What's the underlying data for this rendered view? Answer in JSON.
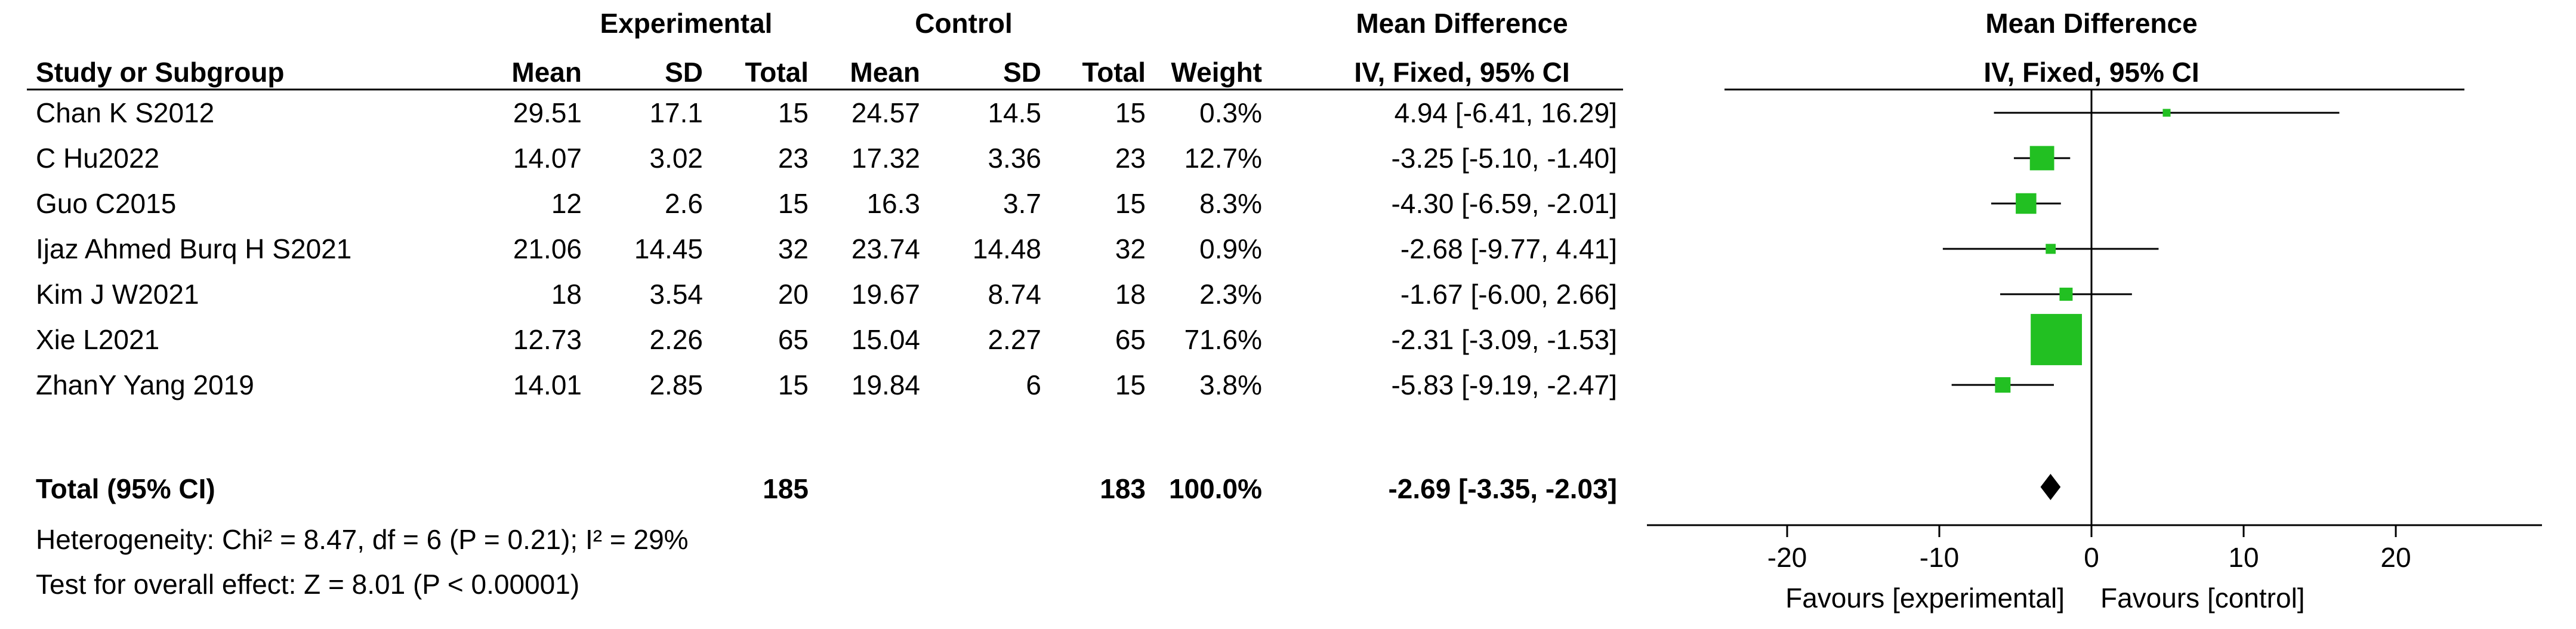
{
  "chart_data": {
    "type": "forest",
    "group_headers": {
      "experimental": "Experimental",
      "control": "Control",
      "md_table": "Mean Difference",
      "md_plot": "Mean Difference"
    },
    "column_headers": {
      "study": "Study or Subgroup",
      "exp_mean": "Mean",
      "exp_sd": "SD",
      "exp_total": "Total",
      "ctrl_mean": "Mean",
      "ctrl_sd": "SD",
      "ctrl_total": "Total",
      "weight": "Weight",
      "ci": "IV, Fixed, 95% CI",
      "plot_ci": "IV, Fixed, 95% CI"
    },
    "studies": [
      {
        "name": "Chan K S2012",
        "exp_mean": "29.51",
        "exp_sd": "17.1",
        "exp_total": "15",
        "ctrl_mean": "24.57",
        "ctrl_sd": "14.5",
        "ctrl_total": "15",
        "weight": "0.3%",
        "ci_text": "4.94 [-6.41, 16.29]",
        "md": 4.94,
        "lower": -6.41,
        "upper": 16.29,
        "weight_pct": 0.3
      },
      {
        "name": "C Hu2022",
        "exp_mean": "14.07",
        "exp_sd": "3.02",
        "exp_total": "23",
        "ctrl_mean": "17.32",
        "ctrl_sd": "3.36",
        "ctrl_total": "23",
        "weight": "12.7%",
        "ci_text": "-3.25 [-5.10, -1.40]",
        "md": -3.25,
        "lower": -5.1,
        "upper": -1.4,
        "weight_pct": 12.7
      },
      {
        "name": "Guo C2015",
        "exp_mean": "12",
        "exp_sd": "2.6",
        "exp_total": "15",
        "ctrl_mean": "16.3",
        "ctrl_sd": "3.7",
        "ctrl_total": "15",
        "weight": "8.3%",
        "ci_text": "-4.30 [-6.59, -2.01]",
        "md": -4.3,
        "lower": -6.59,
        "upper": -2.01,
        "weight_pct": 8.3
      },
      {
        "name": "Ijaz Ahmed Burq H S2021",
        "exp_mean": "21.06",
        "exp_sd": "14.45",
        "exp_total": "32",
        "ctrl_mean": "23.74",
        "ctrl_sd": "14.48",
        "ctrl_total": "32",
        "weight": "0.9%",
        "ci_text": "-2.68 [-9.77, 4.41]",
        "md": -2.68,
        "lower": -9.77,
        "upper": 4.41,
        "weight_pct": 0.9
      },
      {
        "name": "Kim J W2021",
        "exp_mean": "18",
        "exp_sd": "3.54",
        "exp_total": "20",
        "ctrl_mean": "19.67",
        "ctrl_sd": "8.74",
        "ctrl_total": "18",
        "weight": "2.3%",
        "ci_text": "-1.67 [-6.00, 2.66]",
        "md": -1.67,
        "lower": -6.0,
        "upper": 2.66,
        "weight_pct": 2.3
      },
      {
        "name": "Xie L2021",
        "exp_mean": "12.73",
        "exp_sd": "2.26",
        "exp_total": "65",
        "ctrl_mean": "15.04",
        "ctrl_sd": "2.27",
        "ctrl_total": "65",
        "weight": "71.6%",
        "ci_text": "-2.31 [-3.09, -1.53]",
        "md": -2.31,
        "lower": -3.09,
        "upper": -1.53,
        "weight_pct": 71.6
      },
      {
        "name": "ZhanY Yang 2019",
        "exp_mean": "14.01",
        "exp_sd": "2.85",
        "exp_total": "15",
        "ctrl_mean": "19.84",
        "ctrl_sd": "6",
        "ctrl_total": "15",
        "weight": "3.8%",
        "ci_text": "-5.83 [-9.19, -2.47]",
        "md": -5.83,
        "lower": -9.19,
        "upper": -2.47,
        "weight_pct": 3.8
      }
    ],
    "total": {
      "label": "Total (95% CI)",
      "exp_total": "185",
      "ctrl_total": "183",
      "weight": "100.0%",
      "ci_text": "-2.69 [-3.35, -2.03]",
      "md": -2.69,
      "lower": -3.35,
      "upper": -2.03
    },
    "heterogeneity": "Heterogeneity: Chi² = 8.47, df = 6 (P = 0.21); I² = 29%",
    "overall_effect": "Test for overall effect: Z = 8.01 (P < 0.00001)",
    "axis": {
      "xlim": [
        -30,
        30
      ],
      "ticks": [
        -20,
        -10,
        0,
        10,
        20
      ],
      "tick_labels": [
        "-20",
        "-10",
        "0",
        "10",
        "20"
      ],
      "favours_left": "Favours [experimental]",
      "favours_right": "Favours [control]"
    },
    "colors": {
      "square": "#22c022",
      "lines": "#000000",
      "diamond": "#000000"
    }
  }
}
